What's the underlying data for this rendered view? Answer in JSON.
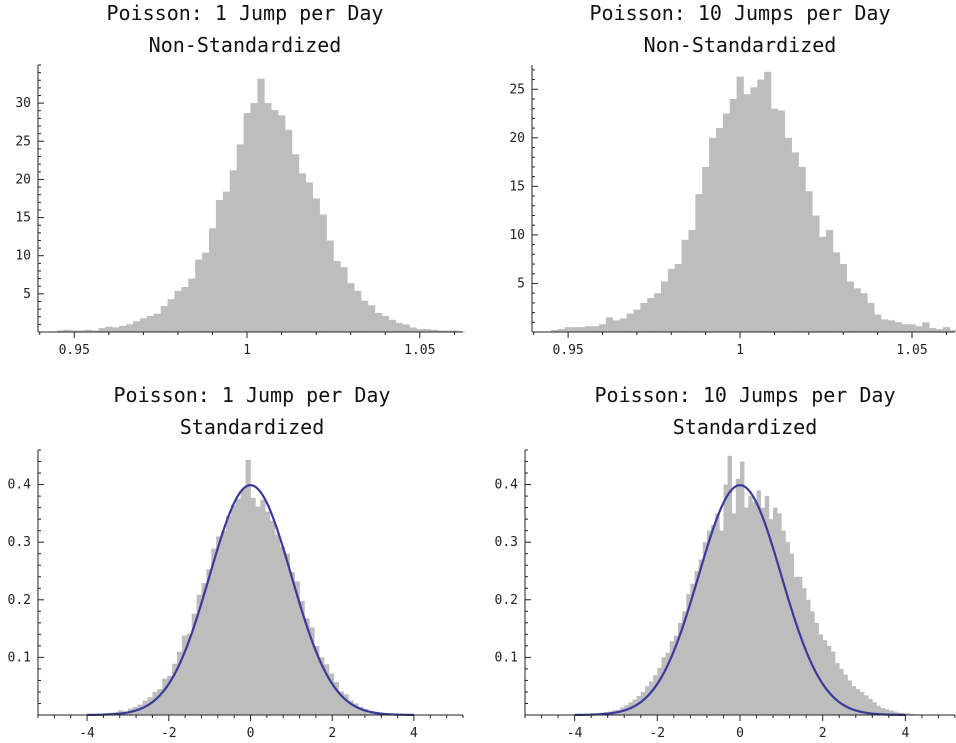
{
  "chart_data": [
    {
      "type": "bar",
      "title": [
        "Poisson: 1 Jump per Day",
        "Non-Standardized"
      ],
      "bar_color": "#bdbdbd",
      "xlim": [
        0.9395,
        1.0625
      ],
      "ylim": [
        0,
        35
      ],
      "xticks": [
        {
          "v": 0.95,
          "label": "0.95"
        },
        {
          "v": 1.0,
          "label": "1"
        },
        {
          "v": 1.05,
          "label": "1.05"
        }
      ],
      "yticks": [
        {
          "v": 5,
          "label": "5"
        },
        {
          "v": 10,
          "label": "10"
        },
        {
          "v": 15,
          "label": "15"
        },
        {
          "v": 20,
          "label": "20"
        },
        {
          "v": 25,
          "label": "25"
        },
        {
          "v": 30,
          "label": "30"
        }
      ],
      "bin_start": 0.945,
      "bin_width": 0.002,
      "values": [
        0.2,
        0.3,
        0.2,
        0.2,
        0.3,
        0.2,
        0.5,
        0.7,
        0.6,
        0.8,
        1.0,
        1.4,
        1.8,
        2.1,
        2.4,
        3.4,
        4.3,
        5.4,
        5.9,
        7.0,
        9.5,
        10.4,
        13.6,
        17.3,
        18.4,
        21.2,
        24.6,
        28.7,
        30.0,
        33.2,
        30.0,
        29.1,
        28.4,
        26.5,
        23.3,
        20.8,
        19.6,
        17.5,
        15.4,
        12.0,
        9.3,
        8.5,
        6.4,
        5.4,
        4.1,
        3.5,
        2.5,
        2.1,
        1.6,
        1.2,
        1.0,
        0.6,
        0.4,
        0.4,
        0.3,
        0.2,
        0.2,
        0.2,
        0.1
      ]
    },
    {
      "type": "bar",
      "title": [
        "Poisson: 10 Jumps per Day",
        "Non-Standardized"
      ],
      "bar_color": "#bdbdbd",
      "xlim": [
        0.9395,
        1.0625
      ],
      "ylim": [
        0,
        27.5
      ],
      "xticks": [
        {
          "v": 0.95,
          "label": "0.95"
        },
        {
          "v": 1.0,
          "label": "1"
        },
        {
          "v": 1.05,
          "label": "1.05"
        }
      ],
      "yticks": [
        {
          "v": 5,
          "label": "5"
        },
        {
          "v": 10,
          "label": "10"
        },
        {
          "v": 15,
          "label": "15"
        },
        {
          "v": 20,
          "label": "20"
        },
        {
          "v": 25,
          "label": "25"
        }
      ],
      "bin_start": 0.945,
      "bin_width": 0.002,
      "values": [
        0.2,
        0.3,
        0.5,
        0.5,
        0.5,
        0.6,
        0.6,
        0.8,
        1.5,
        1.2,
        1.4,
        1.9,
        2.3,
        3.0,
        3.5,
        4.0,
        5.2,
        6.5,
        7.0,
        9.5,
        10.5,
        14.2,
        17.0,
        20.0,
        21.0,
        22.5,
        24.0,
        26.3,
        24.5,
        25.2,
        26.0,
        26.8,
        23.0,
        22.8,
        20.0,
        18.5,
        17.0,
        14.5,
        12.0,
        9.8,
        10.5,
        8.2,
        7.0,
        5.2,
        4.5,
        4.0,
        3.0,
        1.8,
        1.3,
        1.2,
        1.0,
        0.8,
        0.8,
        0.6,
        1.0,
        0.4,
        0.3,
        0.5,
        0.2
      ]
    },
    {
      "type": "bar",
      "title": [
        "Poisson: 1 Jump per Day",
        "Standardized"
      ],
      "bar_color": "#bdbdbd",
      "curve_color": "#3a3a9a",
      "overlay_curve": "standard-normal-density",
      "xlim": [
        -5.2,
        5.2
      ],
      "ylim": [
        0,
        0.46
      ],
      "xticks": [
        {
          "v": -4,
          "label": "-4"
        },
        {
          "v": -2,
          "label": "-2"
        },
        {
          "v": 0,
          "label": "0"
        },
        {
          "v": 2,
          "label": "2"
        },
        {
          "v": 4,
          "label": "4"
        }
      ],
      "yticks": [
        {
          "v": 0.1,
          "label": "0.1"
        },
        {
          "v": 0.2,
          "label": "0.2"
        },
        {
          "v": 0.3,
          "label": "0.3"
        },
        {
          "v": 0.4,
          "label": "0.4"
        }
      ],
      "bin_start": -3.6,
      "bin_width": 0.12,
      "values": [
        0.003,
        0.004,
        0.005,
        0.008,
        0.006,
        0.011,
        0.014,
        0.018,
        0.025,
        0.031,
        0.04,
        0.045,
        0.063,
        0.068,
        0.089,
        0.11,
        0.138,
        0.141,
        0.176,
        0.209,
        0.229,
        0.253,
        0.289,
        0.31,
        0.32,
        0.346,
        0.365,
        0.375,
        0.392,
        0.443,
        0.377,
        0.362,
        0.374,
        0.353,
        0.337,
        0.313,
        0.292,
        0.28,
        0.248,
        0.232,
        0.198,
        0.168,
        0.152,
        0.12,
        0.1,
        0.088,
        0.072,
        0.057,
        0.041,
        0.036,
        0.025,
        0.02,
        0.014,
        0.01,
        0.007,
        0.004,
        0.003,
        0.002,
        0.002,
        0.001
      ]
    },
    {
      "type": "bar",
      "title": [
        "Poisson: 10 Jumps per Day",
        "Standardized"
      ],
      "bar_color": "#bdbdbd",
      "curve_color": "#3a3a9a",
      "overlay_curve": "standard-normal-density",
      "xlim": [
        -5.2,
        5.2
      ],
      "ylim": [
        0,
        0.46
      ],
      "xticks": [
        {
          "v": -4,
          "label": "-4"
        },
        {
          "v": -2,
          "label": "-2"
        },
        {
          "v": 0,
          "label": "0"
        },
        {
          "v": 2,
          "label": "2"
        },
        {
          "v": 4,
          "label": "4"
        }
      ],
      "yticks": [
        {
          "v": 0.1,
          "label": "0.1"
        },
        {
          "v": 0.2,
          "label": "0.2"
        },
        {
          "v": 0.3,
          "label": "0.3"
        },
        {
          "v": 0.4,
          "label": "0.4"
        }
      ],
      "bin_start": -3.6,
      "bin_width": 0.1,
      "values": [
        0.002,
        0.003,
        0.004,
        0.005,
        0.006,
        0.008,
        0.009,
        0.013,
        0.017,
        0.022,
        0.027,
        0.033,
        0.04,
        0.05,
        0.058,
        0.069,
        0.082,
        0.1,
        0.108,
        0.128,
        0.138,
        0.16,
        0.18,
        0.21,
        0.228,
        0.25,
        0.27,
        0.3,
        0.32,
        0.33,
        0.35,
        0.32,
        0.4,
        0.45,
        0.35,
        0.41,
        0.44,
        0.36,
        0.38,
        0.37,
        0.39,
        0.36,
        0.38,
        0.34,
        0.36,
        0.35,
        0.32,
        0.3,
        0.28,
        0.24,
        0.24,
        0.22,
        0.2,
        0.18,
        0.16,
        0.14,
        0.13,
        0.12,
        0.11,
        0.09,
        0.08,
        0.07,
        0.06,
        0.05,
        0.045,
        0.04,
        0.034,
        0.028,
        0.022,
        0.016,
        0.012,
        0.01,
        0.008,
        0.006,
        0.004,
        0.003,
        0.003,
        0.002
      ]
    }
  ]
}
